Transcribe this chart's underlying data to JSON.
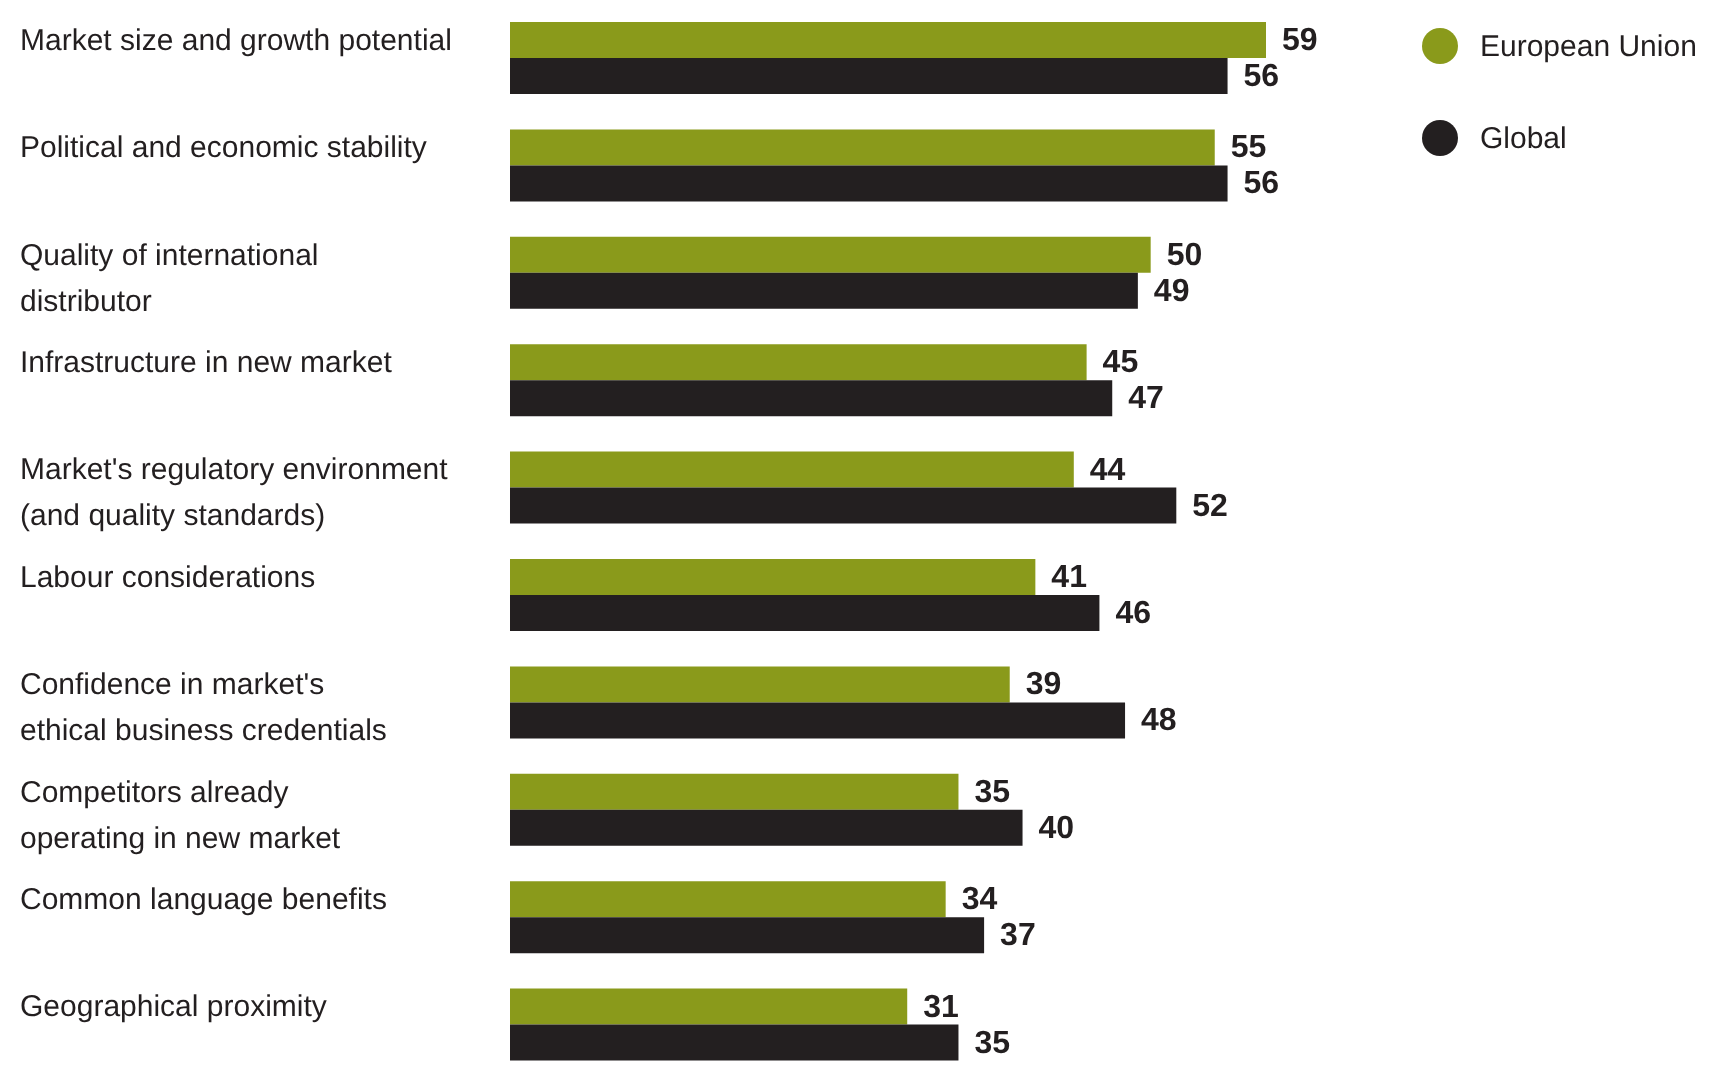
{
  "chart_data": {
    "type": "bar",
    "orientation": "horizontal",
    "categories": [
      "Market size and growth potential",
      "Political and economic stability",
      "Quality of international\ndistributor",
      "Infrastructure in new market",
      "Market's regulatory environment\n(and quality standards)",
      "Labour considerations",
      "Confidence in market's\nethical business credentials",
      "Competitors already\noperating in new market",
      "Common language benefits",
      "Geographical proximity"
    ],
    "series": [
      {
        "name": "European Union",
        "color": "#8a9a1b",
        "values": [
          59,
          55,
          50,
          45,
          44,
          41,
          39,
          35,
          34,
          31
        ]
      },
      {
        "name": "Global",
        "color": "#231f20",
        "values": [
          56,
          56,
          49,
          47,
          52,
          46,
          48,
          40,
          37,
          35
        ]
      }
    ],
    "data_labels": true,
    "legend": "top right"
  }
}
